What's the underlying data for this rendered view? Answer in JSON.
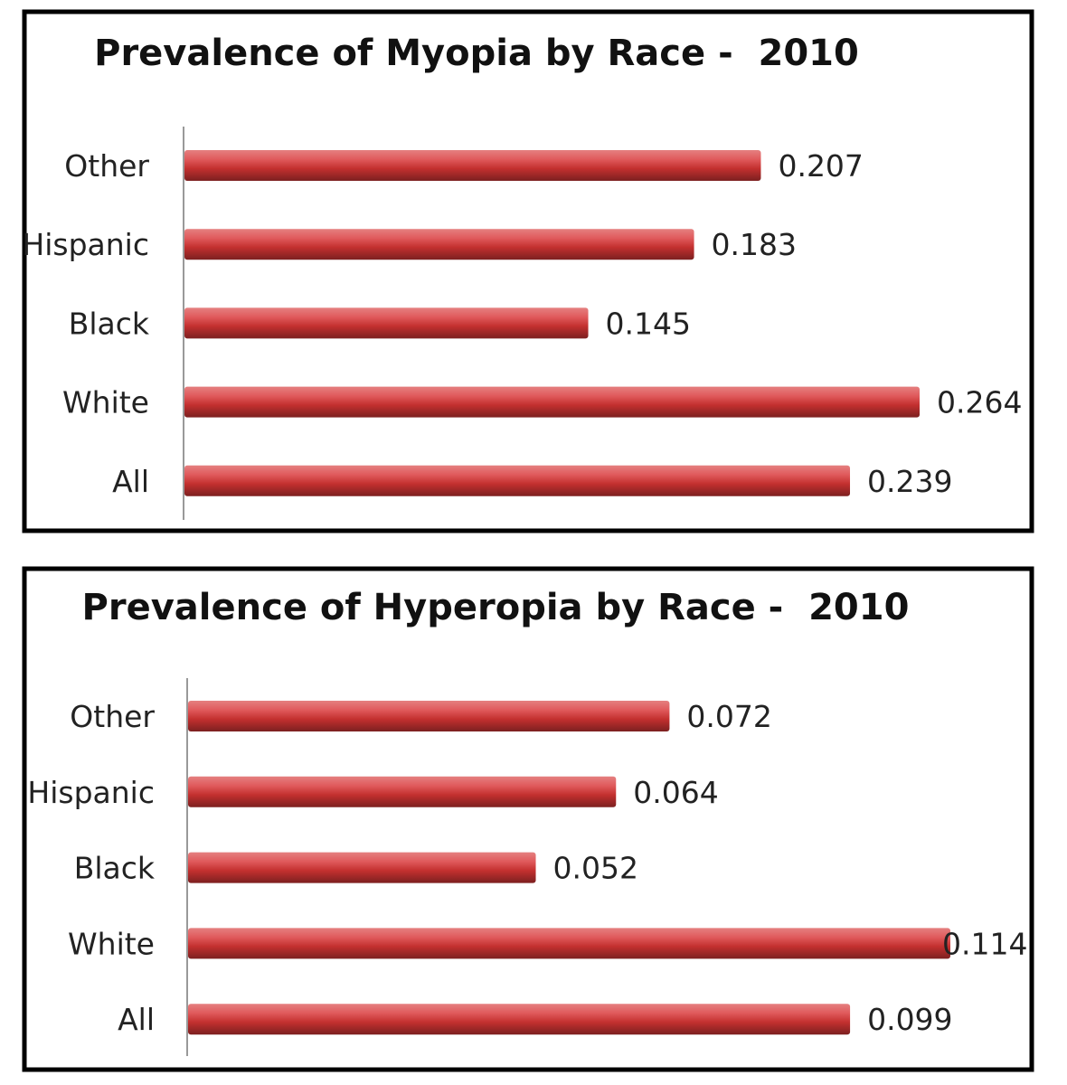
{
  "chart_data": [
    {
      "type": "bar",
      "orientation": "horizontal",
      "title": "Prevalence of Myopia by Race -  2010",
      "categories": [
        "Other",
        "Hispanic",
        "Black",
        "White",
        "All"
      ],
      "values": [
        0.207,
        0.183,
        0.145,
        0.264,
        0.239
      ],
      "data_labels": [
        "0.207",
        "0.183",
        "0.145",
        "0.264",
        "0.239"
      ],
      "xlim": [
        0,
        0.264
      ],
      "grid": false,
      "legend": "none",
      "bar_color": "#c9363a"
    },
    {
      "type": "bar",
      "orientation": "horizontal",
      "title": "Prevalence of Hyperopia by Race -  2010",
      "categories": [
        "Other",
        "Hispanic",
        "Black",
        "White",
        "All"
      ],
      "values": [
        0.072,
        0.064,
        0.052,
        0.114,
        0.099
      ],
      "data_labels": [
        "0.072",
        "0.064",
        "0.052",
        "0.114",
        "0.099"
      ],
      "xlim": [
        0,
        0.114
      ],
      "grid": false,
      "legend": "none",
      "bar_color": "#c9363a"
    }
  ]
}
